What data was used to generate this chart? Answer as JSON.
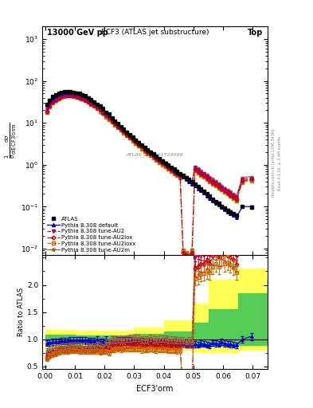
{
  "title_top": "13000 GeV pp",
  "title_right": "Top",
  "main_title": "ECF3 (ATLAS jet substructure)",
  "atlas_label": "ATLAS_2019_I1724098",
  "ylabel_ratio": "Ratio to ATLAS",
  "xlabel": "ECF3'orm",
  "right_label": "Rivet 3.1.10, ≥ 3.4M events",
  "right_label2": "mcplots.cern.ch [arXiv:1306.3436]",
  "xlim": [
    -0.001,
    0.075
  ],
  "ylim_main": [
    0.007,
    2000
  ],
  "ylim_ratio": [
    0.45,
    2.55
  ],
  "x_atlas": [
    0.0005,
    0.0015,
    0.0025,
    0.0035,
    0.0045,
    0.0055,
    0.0065,
    0.0075,
    0.0085,
    0.0095,
    0.0105,
    0.0115,
    0.0125,
    0.0135,
    0.0145,
    0.0155,
    0.0165,
    0.0175,
    0.0185,
    0.0195,
    0.0205,
    0.0215,
    0.0225,
    0.0235,
    0.0245,
    0.0255,
    0.0265,
    0.0275,
    0.0285,
    0.0295,
    0.0305,
    0.0315,
    0.0325,
    0.0335,
    0.0345,
    0.0355,
    0.0365,
    0.0375,
    0.0385,
    0.0395,
    0.0405,
    0.0415,
    0.0425,
    0.0435,
    0.0445,
    0.0455,
    0.0465,
    0.0475,
    0.0485,
    0.0495,
    0.0505,
    0.0515,
    0.0525,
    0.0535,
    0.0545,
    0.0555,
    0.0565,
    0.0575,
    0.0585,
    0.0595,
    0.0605,
    0.0615,
    0.0625,
    0.0635,
    0.0645,
    0.0665,
    0.0695
  ],
  "y_atlas": [
    28,
    35,
    42,
    46,
    50,
    53,
    55,
    56,
    55,
    54,
    52,
    50,
    47,
    44,
    40,
    36,
    32,
    28,
    25,
    22,
    18,
    16,
    13,
    11,
    9.5,
    8.2,
    7.0,
    6.0,
    5.2,
    4.5,
    3.9,
    3.4,
    3.0,
    2.6,
    2.3,
    2.0,
    1.8,
    1.6,
    1.4,
    1.25,
    1.1,
    1.0,
    0.88,
    0.78,
    0.7,
    0.62,
    0.55,
    0.5,
    0.44,
    0.39,
    0.34,
    0.3,
    0.26,
    0.23,
    0.2,
    0.18,
    0.15,
    0.13,
    0.12,
    0.1,
    0.092,
    0.083,
    0.076,
    0.069,
    0.063,
    0.1,
    0.095
  ],
  "x_py_default": [
    0.0005,
    0.0015,
    0.0025,
    0.0035,
    0.0045,
    0.0055,
    0.0065,
    0.0075,
    0.0085,
    0.0095,
    0.0105,
    0.0115,
    0.0125,
    0.0135,
    0.0145,
    0.0155,
    0.0165,
    0.0175,
    0.0185,
    0.0195,
    0.0205,
    0.0215,
    0.0225,
    0.0235,
    0.0245,
    0.0255,
    0.0265,
    0.0275,
    0.0285,
    0.0295,
    0.0305,
    0.0315,
    0.0325,
    0.0335,
    0.0345,
    0.0355,
    0.0365,
    0.0375,
    0.0385,
    0.0395,
    0.0405,
    0.0415,
    0.0425,
    0.0435,
    0.0445,
    0.0455,
    0.0465,
    0.0475,
    0.0485,
    0.0495,
    0.0505,
    0.0515,
    0.0525,
    0.0535,
    0.0545,
    0.0555,
    0.0565,
    0.0575,
    0.0585,
    0.0595,
    0.0605,
    0.0615,
    0.0625,
    0.0635,
    0.0645,
    0.0665,
    0.0695
  ],
  "y_py_default": [
    26,
    33,
    40,
    44,
    48,
    51,
    53,
    54,
    54,
    53,
    51,
    49,
    46,
    43,
    39,
    35,
    31,
    28,
    24,
    21,
    18,
    15,
    13,
    11,
    9.3,
    8.0,
    6.9,
    5.9,
    5.1,
    4.4,
    3.8,
    3.3,
    2.9,
    2.5,
    2.2,
    1.95,
    1.72,
    1.52,
    1.34,
    1.19,
    1.06,
    0.94,
    0.83,
    0.74,
    0.65,
    0.58,
    0.51,
    0.45,
    0.4,
    0.35,
    0.31,
    0.27,
    0.24,
    0.21,
    0.18,
    0.16,
    0.14,
    0.12,
    0.11,
    0.095,
    0.085,
    0.076,
    0.069,
    0.062,
    0.056,
    0.1,
    0.1
  ],
  "x_au2": [
    0.0005,
    0.0015,
    0.0025,
    0.0035,
    0.0045,
    0.0055,
    0.0065,
    0.0075,
    0.0085,
    0.0095,
    0.0105,
    0.0115,
    0.0125,
    0.0135,
    0.0145,
    0.0155,
    0.0165,
    0.0175,
    0.0185,
    0.0195,
    0.0205,
    0.0215,
    0.0225,
    0.0235,
    0.0245,
    0.0255,
    0.0265,
    0.0275,
    0.0285,
    0.0295,
    0.0305,
    0.0315,
    0.0325,
    0.0335,
    0.0345,
    0.0355,
    0.0365,
    0.0375,
    0.0385,
    0.0395,
    0.0405,
    0.0415,
    0.0425,
    0.0435,
    0.0445,
    0.0455,
    0.0465,
    0.0475,
    0.0485,
    0.0495,
    0.0505,
    0.0515,
    0.0525,
    0.0535,
    0.0545,
    0.0555,
    0.0565,
    0.0575,
    0.0585,
    0.0595,
    0.0605,
    0.0615,
    0.0625,
    0.0635,
    0.0645,
    0.0665,
    0.0695
  ],
  "y_au2": [
    20,
    26,
    32,
    36,
    40,
    43,
    45,
    46,
    46,
    45,
    43,
    41,
    39,
    36,
    33,
    30,
    27,
    24,
    21,
    18,
    16,
    14,
    12,
    10.5,
    9.0,
    7.8,
    6.7,
    5.8,
    5.0,
    4.3,
    3.8,
    3.3,
    2.9,
    2.5,
    2.2,
    1.95,
    1.72,
    1.52,
    1.34,
    1.19,
    1.06,
    0.94,
    0.83,
    0.74,
    0.65,
    0.58,
    0.51,
    0.45,
    0.4,
    0.35,
    0.85,
    0.76,
    0.68,
    0.6,
    0.53,
    0.47,
    0.42,
    0.37,
    0.33,
    0.29,
    0.26,
    0.23,
    0.21,
    0.19,
    0.17,
    0.45,
    0.48
  ],
  "x_au2lox": [
    0.0005,
    0.0015,
    0.0025,
    0.0035,
    0.0045,
    0.0055,
    0.0065,
    0.0075,
    0.0085,
    0.0095,
    0.0105,
    0.0115,
    0.0125,
    0.0135,
    0.0145,
    0.0155,
    0.0165,
    0.0175,
    0.0185,
    0.0195,
    0.0205,
    0.0215,
    0.0225,
    0.0235,
    0.0245,
    0.0255,
    0.0265,
    0.0275,
    0.0285,
    0.0295,
    0.0305,
    0.0315,
    0.0325,
    0.0335,
    0.0345,
    0.0355,
    0.0365,
    0.0375,
    0.0385,
    0.0395,
    0.0405,
    0.0415,
    0.0425,
    0.0435,
    0.0445,
    0.0455,
    0.0465,
    0.0475,
    0.0485,
    0.0495,
    0.0505,
    0.0515,
    0.0525,
    0.0535,
    0.0545,
    0.0555,
    0.0565,
    0.0575,
    0.0585,
    0.0595,
    0.0605,
    0.0615,
    0.0625,
    0.0635,
    0.0645,
    0.0665,
    0.0695
  ],
  "y_au2lox": [
    19,
    25,
    31,
    35,
    39,
    42,
    44,
    45,
    45,
    44,
    42,
    40,
    38,
    35,
    32,
    29,
    26,
    23,
    20,
    17,
    15,
    13,
    11,
    9.5,
    8.2,
    7.1,
    6.1,
    5.3,
    4.6,
    4.0,
    3.5,
    3.0,
    2.7,
    2.3,
    2.0,
    1.8,
    1.59,
    1.4,
    1.24,
    1.1,
    0.98,
    0.87,
    0.77,
    0.68,
    0.61,
    0.54,
    0.008,
    0.007,
    0.006,
    0.008,
    0.78,
    0.7,
    0.62,
    0.55,
    0.49,
    0.43,
    0.38,
    0.34,
    0.3,
    0.27,
    0.24,
    0.21,
    0.19,
    0.17,
    0.15,
    0.42,
    0.44
  ],
  "x_au2loxx": [
    0.0005,
    0.0015,
    0.0025,
    0.0035,
    0.0045,
    0.0055,
    0.0065,
    0.0075,
    0.0085,
    0.0095,
    0.0105,
    0.0115,
    0.0125,
    0.0135,
    0.0145,
    0.0155,
    0.0165,
    0.0175,
    0.0185,
    0.0195,
    0.0205,
    0.0215,
    0.0225,
    0.0235,
    0.0245,
    0.0255,
    0.0265,
    0.0275,
    0.0285,
    0.0295,
    0.0305,
    0.0315,
    0.0325,
    0.0335,
    0.0345,
    0.0355,
    0.0365,
    0.0375,
    0.0385,
    0.0395,
    0.0405,
    0.0415,
    0.0425,
    0.0435,
    0.0445,
    0.0455,
    0.0465,
    0.0475,
    0.0485,
    0.0495,
    0.0505,
    0.0515,
    0.0525,
    0.0535,
    0.0545,
    0.0555,
    0.0565,
    0.0575,
    0.0585,
    0.0595,
    0.0605,
    0.0615,
    0.0625,
    0.0635,
    0.0645,
    0.0665,
    0.0695
  ],
  "y_au2loxx": [
    18,
    24,
    30,
    34,
    38,
    41,
    43,
    44,
    44,
    43,
    41,
    39,
    37,
    34,
    31,
    28,
    25,
    22,
    19,
    17,
    14,
    12,
    10.5,
    9.0,
    7.8,
    6.7,
    5.8,
    5.0,
    4.3,
    3.7,
    3.2,
    2.8,
    2.4,
    2.1,
    1.85,
    1.64,
    1.45,
    1.28,
    1.13,
    1.01,
    0.89,
    0.79,
    0.7,
    0.62,
    0.55,
    0.49,
    0.009,
    0.008,
    0.007,
    0.009,
    0.72,
    0.64,
    0.57,
    0.51,
    0.45,
    0.4,
    0.35,
    0.31,
    0.28,
    0.25,
    0.22,
    0.2,
    0.18,
    0.16,
    0.14,
    0.38,
    0.42
  ],
  "x_au2m": [
    0.0005,
    0.0015,
    0.0025,
    0.0035,
    0.0045,
    0.0055,
    0.0065,
    0.0075,
    0.0085,
    0.0095,
    0.0105,
    0.0115,
    0.0125,
    0.0135,
    0.0145,
    0.0155,
    0.0165,
    0.0175,
    0.0185,
    0.0195,
    0.0205,
    0.0215,
    0.0225,
    0.0235,
    0.0245,
    0.0255,
    0.0265,
    0.0275,
    0.0285,
    0.0295,
    0.0305,
    0.0315,
    0.0325,
    0.0335,
    0.0345,
    0.0355,
    0.0365,
    0.0375,
    0.0385,
    0.0395,
    0.0405,
    0.0415,
    0.0425,
    0.0435,
    0.0445,
    0.0455,
    0.0465,
    0.0475,
    0.0485,
    0.0495,
    0.0505,
    0.0515,
    0.0525,
    0.0535,
    0.0545,
    0.0555,
    0.0565,
    0.0575,
    0.0585,
    0.0595,
    0.0605,
    0.0615,
    0.0625,
    0.0635,
    0.0645,
    0.0665,
    0.0695
  ],
  "y_au2m": [
    22,
    28,
    35,
    39,
    43,
    46,
    48,
    49,
    49,
    48,
    46,
    44,
    41,
    38,
    35,
    31,
    28,
    25,
    22,
    19,
    17,
    15,
    13,
    11,
    9.5,
    8.2,
    7.0,
    6.1,
    5.3,
    4.6,
    4.0,
    3.5,
    3.0,
    2.6,
    2.3,
    2.05,
    1.81,
    1.6,
    1.41,
    1.26,
    1.11,
    0.99,
    0.88,
    0.78,
    0.69,
    0.61,
    0.54,
    0.48,
    0.43,
    0.38,
    0.92,
    0.82,
    0.73,
    0.65,
    0.58,
    0.51,
    0.46,
    0.41,
    0.36,
    0.32,
    0.28,
    0.25,
    0.23,
    0.2,
    0.18,
    0.5,
    0.52
  ],
  "ratio_green_x": [
    0.0,
    0.01,
    0.02,
    0.03,
    0.04,
    0.05,
    0.055,
    0.065,
    0.075
  ],
  "ratio_green_lo": [
    0.92,
    0.93,
    0.93,
    0.92,
    0.9,
    0.88,
    0.88,
    0.9,
    0.9
  ],
  "ratio_green_hi": [
    1.08,
    1.07,
    1.07,
    1.1,
    1.15,
    1.3,
    1.55,
    1.85,
    2.1
  ],
  "ratio_yellow_lo": [
    0.82,
    0.84,
    0.84,
    0.82,
    0.8,
    0.77,
    0.77,
    0.8,
    0.8
  ],
  "ratio_yellow_hi": [
    1.18,
    1.16,
    1.16,
    1.22,
    1.35,
    1.65,
    2.1,
    2.3,
    2.3
  ],
  "color_atlas": "#000000",
  "color_default": "#0000cc",
  "color_au2": "#aa0066",
  "color_au2lox": "#cc0000",
  "color_au2loxx": "#cc6600",
  "color_au2m": "#996633",
  "legend_entries": [
    "ATLAS",
    "Pythia 8.308 default",
    "Pythia 8.308 tune-AU2",
    "Pythia 8.308 tune-AU2lox",
    "Pythia 8.308 tune-AU2loxx",
    "Pythia 8.308 tune-AU2m"
  ]
}
